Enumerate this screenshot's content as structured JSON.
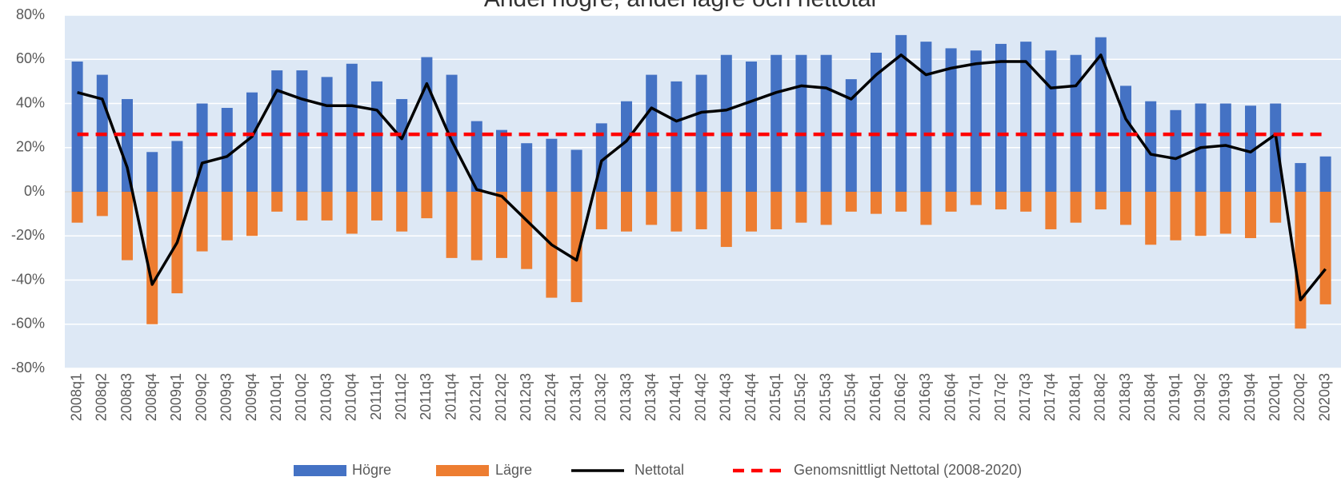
{
  "chart_data": {
    "type": "bar",
    "title": "Andel högre, andel lägre och nettotal",
    "categories": [
      "2008q1",
      "2008q2",
      "2008q3",
      "2008q4",
      "2009q1",
      "2009q2",
      "2009q3",
      "2009q4",
      "2010q1",
      "2010q2",
      "2010q3",
      "2010q4",
      "2011q1",
      "2011q2",
      "2011q3",
      "2011q4",
      "2012q1",
      "2012q2",
      "2012q3",
      "2012q4",
      "2013q1",
      "2013q2",
      "2013q3",
      "2013q4",
      "2014q1",
      "2014q2",
      "2014q3",
      "2014q4",
      "2015q1",
      "2015q2",
      "2015q3",
      "2015q4",
      "2016q1",
      "2016q2",
      "2016q3",
      "2016q4",
      "2017q1",
      "2017q2",
      "2017q3",
      "2017q4",
      "2018q1",
      "2018q2",
      "2018q3",
      "2018q4",
      "2019q1",
      "2019q2",
      "2019q3",
      "2019q4",
      "2020q1",
      "2020q2",
      "2020q3"
    ],
    "series": [
      {
        "name": "Högre",
        "type": "bar",
        "color": "#4472c4",
        "values": [
          59,
          53,
          42,
          18,
          23,
          40,
          38,
          45,
          55,
          55,
          52,
          58,
          50,
          42,
          61,
          53,
          32,
          28,
          22,
          24,
          19,
          31,
          41,
          53,
          50,
          53,
          62,
          59,
          62,
          62,
          62,
          51,
          63,
          71,
          68,
          65,
          64,
          67,
          68,
          64,
          62,
          70,
          48,
          41,
          37,
          40,
          40,
          39,
          40,
          13,
          16
        ]
      },
      {
        "name": "Lägre",
        "type": "bar",
        "color": "#ed7d31",
        "values": [
          -14,
          -11,
          -31,
          -60,
          -46,
          -27,
          -22,
          -20,
          -9,
          -13,
          -13,
          -19,
          -13,
          -18,
          -12,
          -30,
          -31,
          -30,
          -35,
          -48,
          -50,
          -17,
          -18,
          -15,
          -18,
          -17,
          -25,
          -18,
          -17,
          -14,
          -15,
          -9,
          -10,
          -9,
          -15,
          -9,
          -6,
          -8,
          -9,
          -17,
          -14,
          -8,
          -15,
          -24,
          -22,
          -20,
          -19,
          -21,
          -14,
          -62,
          -51
        ]
      },
      {
        "name": "Nettotal",
        "type": "line",
        "color": "#000000",
        "values": [
          45,
          42,
          11,
          -42,
          -23,
          13,
          16,
          25,
          46,
          42,
          39,
          39,
          37,
          24,
          49,
          23,
          1,
          -2,
          -13,
          -24,
          -31,
          14,
          23,
          38,
          32,
          36,
          37,
          41,
          45,
          48,
          47,
          42,
          53,
          62,
          53,
          56,
          58,
          59,
          59,
          47,
          48,
          62,
          33,
          17,
          15,
          20,
          21,
          18,
          26,
          -49,
          -35
        ]
      },
      {
        "name": "Genomsnittligt Nettotal (2008-2020)",
        "type": "hline",
        "color": "#ff0000",
        "value": 26
      }
    ],
    "ylim": [
      -80,
      80
    ],
    "yticks": [
      {
        "value": -80,
        "label": "-80%"
      },
      {
        "value": -60,
        "label": "-60%"
      },
      {
        "value": -40,
        "label": "-40%"
      },
      {
        "value": -20,
        "label": "-20%"
      },
      {
        "value": 0,
        "label": "0%"
      },
      {
        "value": 20,
        "label": "20%"
      },
      {
        "value": 40,
        "label": "40%"
      },
      {
        "value": 60,
        "label": "60%"
      },
      {
        "value": 80,
        "label": "80%"
      }
    ],
    "grid": true,
    "legend": "bottom"
  }
}
